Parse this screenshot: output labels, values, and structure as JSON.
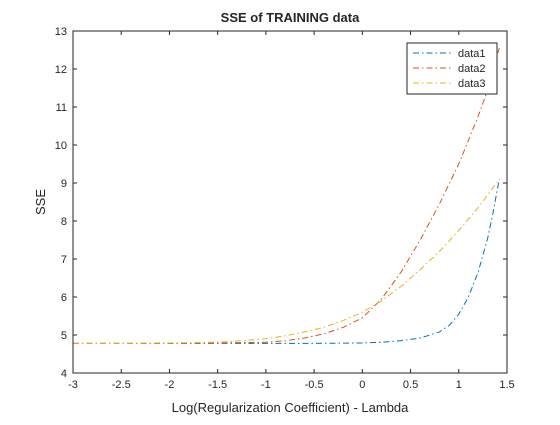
{
  "chart_data": {
    "type": "line",
    "title": "SSE of TRAINING data",
    "xlabel": "Log(Regularization Coefficient) - Lambda",
    "ylabel": "SSE",
    "xlim": [
      -3,
      1.5
    ],
    "ylim": [
      4,
      13
    ],
    "xticks": [
      -3,
      -2.5,
      -2,
      -1.5,
      -1,
      -0.5,
      0,
      0.5,
      1,
      1.5
    ],
    "xtick_labels": [
      "-3",
      "-2.5",
      "-2",
      "-1.5",
      "-1",
      "-0.5",
      "0",
      "0.5",
      "1",
      "1.5"
    ],
    "yticks": [
      4,
      5,
      6,
      7,
      8,
      9,
      10,
      11,
      12,
      13
    ],
    "ytick_labels": [
      "4",
      "5",
      "6",
      "7",
      "8",
      "9",
      "10",
      "11",
      "12",
      "13"
    ],
    "grid": false,
    "legend_position": "top-right",
    "series": [
      {
        "name": "data1",
        "color": "#0072bd",
        "x": [
          -3,
          -2.5,
          -2,
          -1.5,
          -1,
          -0.5,
          0,
          0.2,
          0.4,
          0.6,
          0.8,
          0.9,
          1.0,
          1.1,
          1.2,
          1.3,
          1.35,
          1.42
        ],
        "y": [
          4.78,
          4.78,
          4.78,
          4.78,
          4.78,
          4.78,
          4.79,
          4.81,
          4.85,
          4.92,
          5.08,
          5.25,
          5.55,
          6.0,
          6.65,
          7.55,
          8.15,
          9.1
        ]
      },
      {
        "name": "data2",
        "color": "#d95319",
        "x": [
          -3,
          -2.5,
          -2,
          -1.5,
          -1,
          -0.8,
          -0.6,
          -0.4,
          -0.2,
          0,
          0.2,
          0.4,
          0.6,
          0.8,
          1.0,
          1.2,
          1.3,
          1.42
        ],
        "y": [
          4.78,
          4.78,
          4.78,
          4.79,
          4.81,
          4.85,
          4.92,
          5.03,
          5.2,
          5.45,
          5.95,
          6.65,
          7.5,
          8.45,
          9.5,
          10.75,
          11.45,
          12.55
        ]
      },
      {
        "name": "data3",
        "color": "#edb120",
        "x": [
          -3,
          -2.5,
          -2,
          -1.5,
          -1.2,
          -1,
          -0.8,
          -0.6,
          -0.4,
          -0.2,
          0,
          0.2,
          0.4,
          0.6,
          0.8,
          1.0,
          1.2,
          1.42
        ],
        "y": [
          4.78,
          4.78,
          4.79,
          4.81,
          4.86,
          4.9,
          4.98,
          5.08,
          5.2,
          5.38,
          5.6,
          5.9,
          6.28,
          6.72,
          7.2,
          7.75,
          8.35,
          9.1
        ]
      }
    ]
  }
}
